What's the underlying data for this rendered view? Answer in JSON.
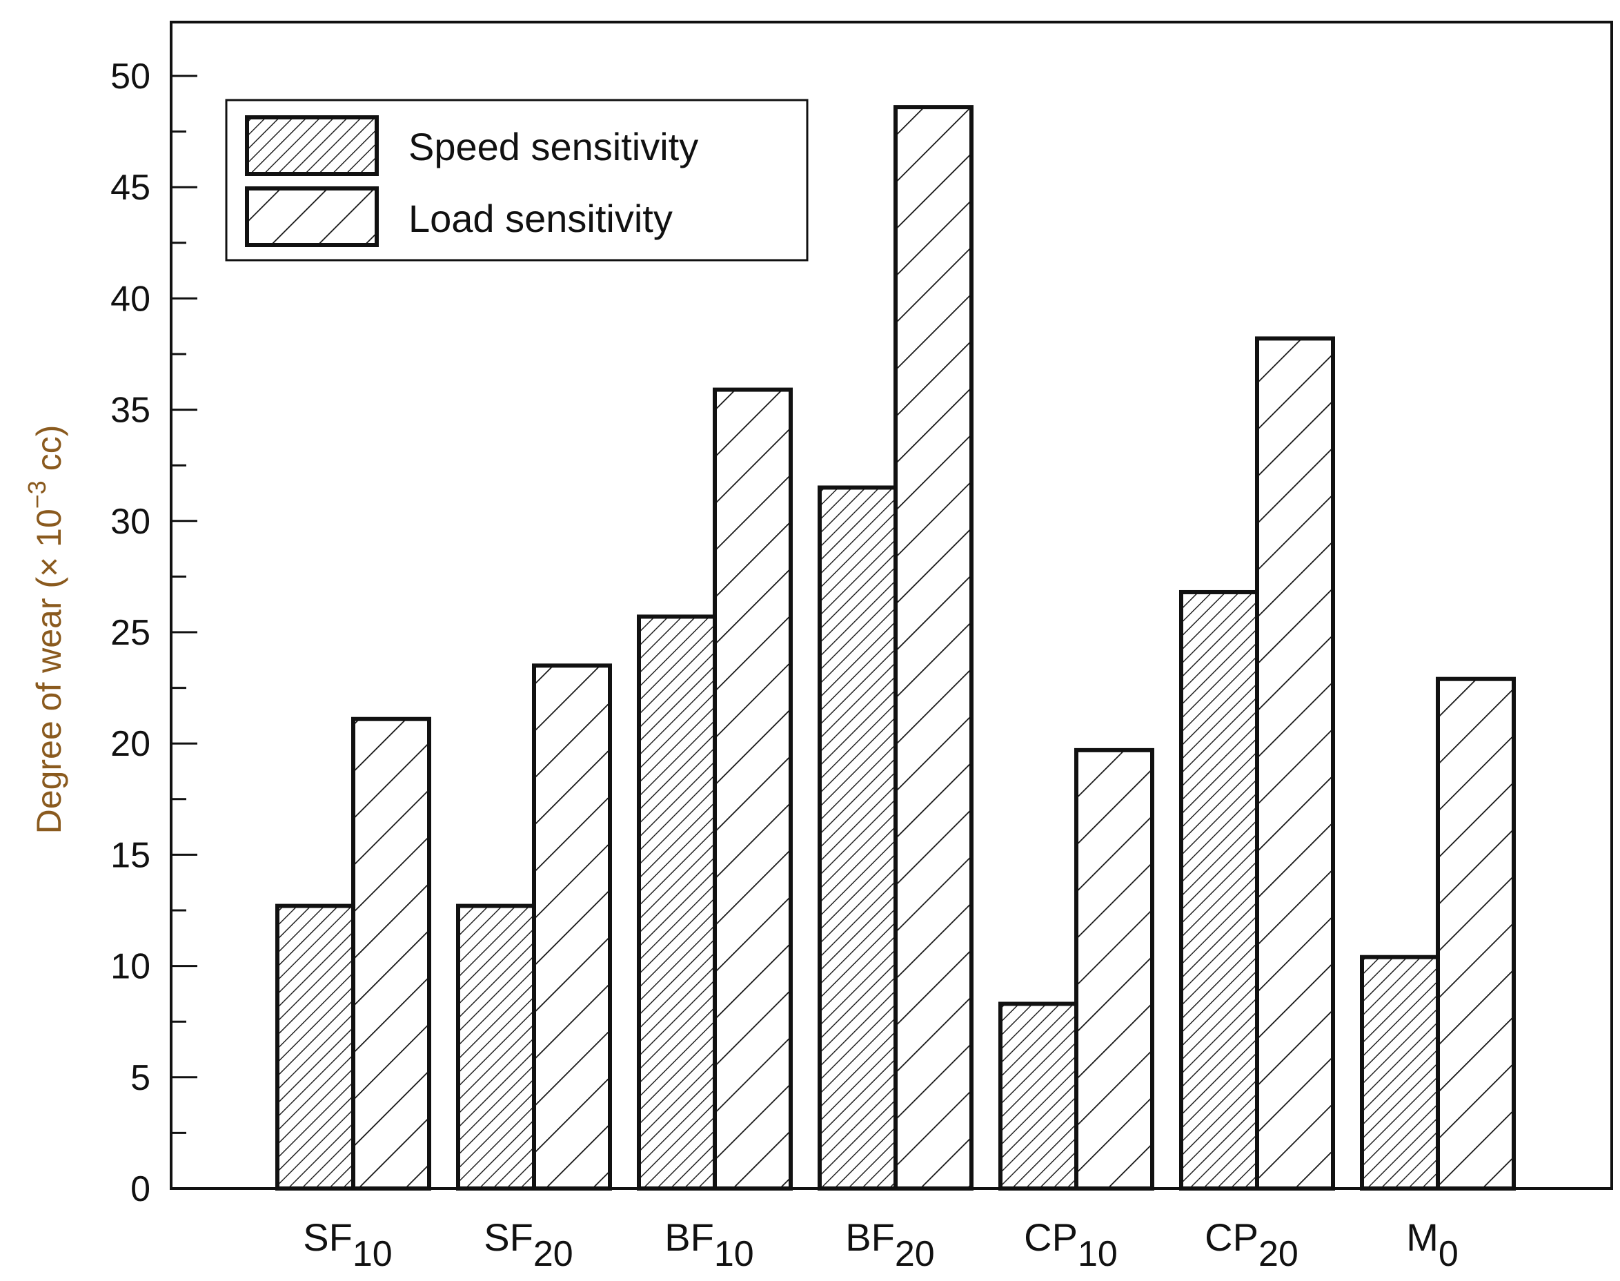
{
  "chart_data": {
    "type": "bar",
    "title": "",
    "xlabel": "",
    "ylabel_prefix": "Degree of wear (× 10",
    "ylabel_exponent": "−3",
    "ylabel_suffix": " cc)",
    "ylim": [
      0,
      52
    ],
    "yticks": [
      0,
      5,
      10,
      15,
      20,
      25,
      30,
      35,
      40,
      45,
      50
    ],
    "categories": [
      {
        "base": "SF",
        "sub": "10"
      },
      {
        "base": "SF",
        "sub": "20"
      },
      {
        "base": "BF",
        "sub": "10"
      },
      {
        "base": "BF",
        "sub": "20"
      },
      {
        "base": "CP",
        "sub": "10"
      },
      {
        "base": "CP",
        "sub": "20"
      },
      {
        "base": "M",
        "sub": "0"
      }
    ],
    "series": [
      {
        "name": "Speed sensitivity",
        "pattern": "dense-hatch",
        "values": [
          12.7,
          12.7,
          25.7,
          31.5,
          8.3,
          26.8,
          10.4
        ]
      },
      {
        "name": "Load sensitivity",
        "pattern": "wide-hatch",
        "values": [
          21.1,
          23.5,
          35.9,
          48.6,
          19.7,
          38.2,
          22.9
        ]
      }
    ],
    "grid": false,
    "legend_position": "top-left"
  }
}
